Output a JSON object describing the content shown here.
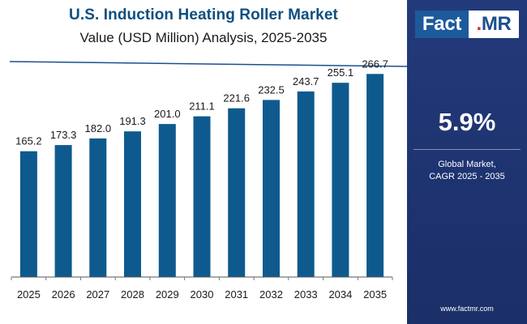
{
  "chart_data": {
    "type": "bar",
    "title": "U.S. Induction Heating Roller Market",
    "subtitle": "Value (USD Million) Analysis, 2025-2035",
    "xlabel": "",
    "ylabel": "",
    "categories": [
      "2025",
      "2026",
      "2027",
      "2028",
      "2029",
      "2030",
      "2031",
      "2032",
      "2033",
      "2034",
      "2035"
    ],
    "values": [
      165.2,
      173.3,
      182.0,
      191.3,
      201.0,
      211.1,
      221.6,
      232.5,
      243.7,
      255.1,
      266.7
    ],
    "value_labels": [
      "165.2",
      "173.3",
      "182.0",
      "191.3",
      "201.0",
      "211.1",
      "221.6",
      "232.5",
      "243.7",
      "255.1",
      "266.7"
    ],
    "ylim": [
      0,
      300
    ],
    "grid": false,
    "legend": "none",
    "bar_color": "#0e5a8e"
  },
  "side_panel": {
    "logo": {
      "fact": "Fact",
      "dot": ".",
      "mr": "MR"
    },
    "cagr_value": "5.9%",
    "cagr_label_line1": "Global Market,",
    "cagr_label_line2": "CAGR 2025 - 2035",
    "website": "www.factmr.com"
  },
  "colors": {
    "title": "#0d4f80",
    "accent_line": "#1d4f8e",
    "panel": "#213777",
    "logo_red": "#e0282e"
  }
}
